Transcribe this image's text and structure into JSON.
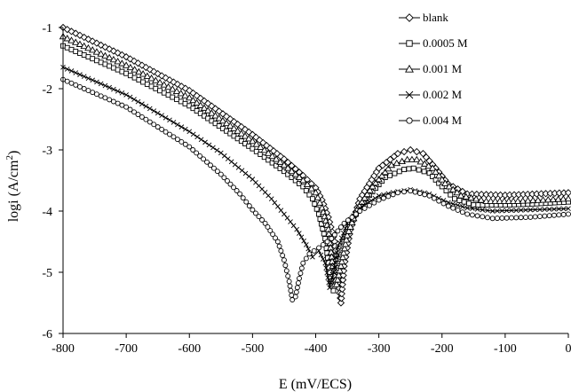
{
  "chart_data": {
    "type": "line",
    "xlabel": "E (mV/ECS)",
    "ylabel_prefix": "logi (A/cm",
    "ylabel_sup": "2",
    "ylabel_suffix": ")",
    "xlim": [
      -800,
      0
    ],
    "ylim": [
      -6,
      -1
    ],
    "x_ticks": [
      "-800",
      "-700",
      "-600",
      "-500",
      "-400",
      "-300",
      "-200",
      "-100",
      "0"
    ],
    "y_ticks": [
      "-1",
      "-2",
      "-3",
      "-4",
      "-5",
      "-6"
    ],
    "legend_position": "top-right",
    "series": [
      {
        "name": "blank",
        "marker": "diamond",
        "points": [
          [
            -800,
            -1.0
          ],
          [
            -700,
            -1.48
          ],
          [
            -600,
            -2.03
          ],
          [
            -500,
            -2.75
          ],
          [
            -450,
            -3.15
          ],
          [
            -420,
            -3.42
          ],
          [
            -400,
            -3.62
          ],
          [
            -390,
            -3.82
          ],
          [
            -380,
            -4.1
          ],
          [
            -370,
            -4.5
          ],
          [
            -365,
            -5.1
          ],
          [
            -360,
            -5.5
          ],
          [
            -355,
            -4.9
          ],
          [
            -345,
            -4.3
          ],
          [
            -330,
            -3.8
          ],
          [
            -300,
            -3.3
          ],
          [
            -270,
            -3.06
          ],
          [
            -250,
            -3.0
          ],
          [
            -230,
            -3.06
          ],
          [
            -210,
            -3.3
          ],
          [
            -190,
            -3.56
          ],
          [
            -160,
            -3.72
          ],
          [
            -100,
            -3.74
          ],
          [
            -50,
            -3.72
          ],
          [
            0,
            -3.7
          ]
        ]
      },
      {
        "name": "0.0005 M",
        "marker": "square",
        "points": [
          [
            -800,
            -1.3
          ],
          [
            -700,
            -1.75
          ],
          [
            -600,
            -2.28
          ],
          [
            -500,
            -2.98
          ],
          [
            -450,
            -3.35
          ],
          [
            -420,
            -3.6
          ],
          [
            -405,
            -3.8
          ],
          [
            -395,
            -4.05
          ],
          [
            -385,
            -4.45
          ],
          [
            -378,
            -5.0
          ],
          [
            -372,
            -5.3
          ],
          [
            -365,
            -5.0
          ],
          [
            -355,
            -4.5
          ],
          [
            -340,
            -4.1
          ],
          [
            -320,
            -3.8
          ],
          [
            -290,
            -3.45
          ],
          [
            -260,
            -3.32
          ],
          [
            -245,
            -3.3
          ],
          [
            -220,
            -3.38
          ],
          [
            -200,
            -3.6
          ],
          [
            -180,
            -3.8
          ],
          [
            -150,
            -3.9
          ],
          [
            -100,
            -3.9
          ],
          [
            -50,
            -3.88
          ],
          [
            0,
            -3.85
          ]
        ]
      },
      {
        "name": "0.001 M",
        "marker": "triangle",
        "points": [
          [
            -800,
            -1.15
          ],
          [
            -700,
            -1.62
          ],
          [
            -600,
            -2.15
          ],
          [
            -500,
            -2.86
          ],
          [
            -450,
            -3.25
          ],
          [
            -420,
            -3.5
          ],
          [
            -400,
            -3.7
          ],
          [
            -390,
            -3.95
          ],
          [
            -380,
            -4.3
          ],
          [
            -373,
            -4.9
          ],
          [
            -367,
            -5.2
          ],
          [
            -360,
            -4.9
          ],
          [
            -350,
            -4.4
          ],
          [
            -335,
            -3.98
          ],
          [
            -310,
            -3.6
          ],
          [
            -280,
            -3.25
          ],
          [
            -255,
            -3.16
          ],
          [
            -240,
            -3.16
          ],
          [
            -215,
            -3.3
          ],
          [
            -195,
            -3.55
          ],
          [
            -170,
            -3.75
          ],
          [
            -130,
            -3.84
          ],
          [
            -80,
            -3.84
          ],
          [
            -40,
            -3.82
          ],
          [
            0,
            -3.8
          ]
        ]
      },
      {
        "name": "0.002 M",
        "marker": "x",
        "points": [
          [
            -800,
            -1.65
          ],
          [
            -700,
            -2.1
          ],
          [
            -600,
            -2.7
          ],
          [
            -550,
            -3.05
          ],
          [
            -500,
            -3.48
          ],
          [
            -470,
            -3.8
          ],
          [
            -450,
            -4.05
          ],
          [
            -430,
            -4.3
          ],
          [
            -415,
            -4.55
          ],
          [
            -405,
            -4.75
          ],
          [
            -395,
            -4.65
          ],
          [
            -385,
            -4.85
          ],
          [
            -378,
            -5.25
          ],
          [
            -372,
            -5.0
          ],
          [
            -365,
            -4.6
          ],
          [
            -350,
            -4.2
          ],
          [
            -330,
            -3.95
          ],
          [
            -300,
            -3.75
          ],
          [
            -270,
            -3.68
          ],
          [
            -250,
            -3.65
          ],
          [
            -220,
            -3.72
          ],
          [
            -190,
            -3.86
          ],
          [
            -160,
            -3.95
          ],
          [
            -120,
            -4.0
          ],
          [
            -60,
            -3.98
          ],
          [
            0,
            -3.96
          ]
        ]
      },
      {
        "name": "0.004 M",
        "marker": "circle",
        "points": [
          [
            -800,
            -1.85
          ],
          [
            -700,
            -2.3
          ],
          [
            -600,
            -2.95
          ],
          [
            -550,
            -3.4
          ],
          [
            -520,
            -3.72
          ],
          [
            -500,
            -3.98
          ],
          [
            -480,
            -4.2
          ],
          [
            -460,
            -4.5
          ],
          [
            -450,
            -4.8
          ],
          [
            -442,
            -5.15
          ],
          [
            -437,
            -5.45
          ],
          [
            -432,
            -5.4
          ],
          [
            -426,
            -5.1
          ],
          [
            -420,
            -4.85
          ],
          [
            -410,
            -4.7
          ],
          [
            -395,
            -4.6
          ],
          [
            -375,
            -4.45
          ],
          [
            -355,
            -4.2
          ],
          [
            -330,
            -4.0
          ],
          [
            -300,
            -3.82
          ],
          [
            -270,
            -3.7
          ],
          [
            -250,
            -3.67
          ],
          [
            -220,
            -3.75
          ],
          [
            -190,
            -3.92
          ],
          [
            -160,
            -4.05
          ],
          [
            -120,
            -4.12
          ],
          [
            -60,
            -4.1
          ],
          [
            0,
            -4.05
          ]
        ]
      }
    ]
  }
}
